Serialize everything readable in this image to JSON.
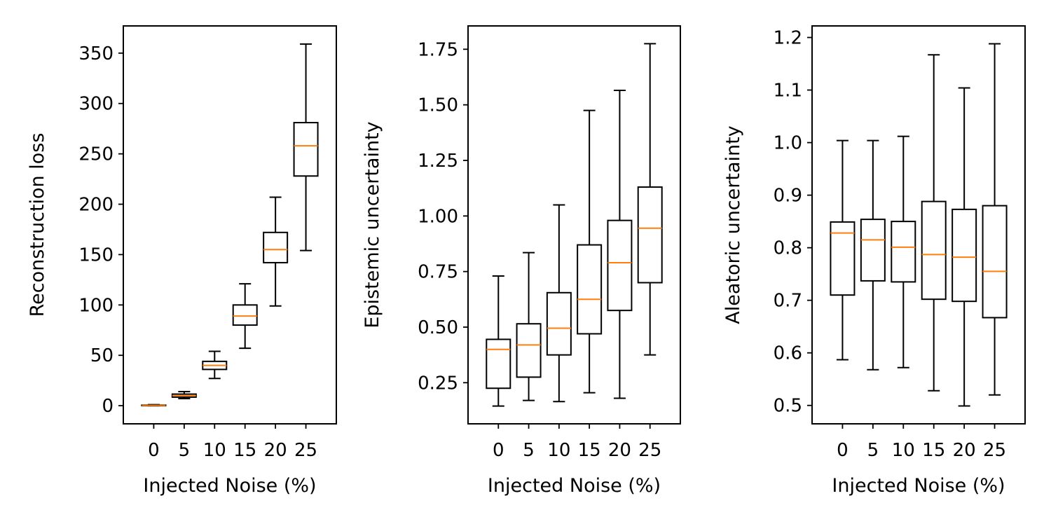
{
  "chart_data": [
    {
      "type": "box",
      "xlabel": "Injected Noise (%)",
      "ylabel": "Reconstruction loss",
      "categories": [
        "0",
        "5",
        "10",
        "15",
        "20",
        "25"
      ],
      "ylim": [
        -18,
        377
      ],
      "yticks": [
        0,
        50,
        100,
        150,
        200,
        250,
        300,
        350
      ],
      "ytick_labels": [
        "0",
        "50",
        "100",
        "150",
        "200",
        "250",
        "300",
        "350"
      ],
      "boxes": [
        {
          "min": 0,
          "q1": 0,
          "median": 0.3,
          "q3": 0.6,
          "max": 1
        },
        {
          "min": 7,
          "q1": 8.5,
          "median": 10,
          "q3": 11.5,
          "max": 14
        },
        {
          "min": 27,
          "q1": 36,
          "median": 40,
          "q3": 44,
          "max": 54
        },
        {
          "min": 57,
          "q1": 80,
          "median": 89,
          "q3": 100,
          "max": 121
        },
        {
          "min": 99,
          "q1": 142,
          "median": 155,
          "q3": 172,
          "max": 207
        },
        {
          "min": 154,
          "q1": 228,
          "median": 258,
          "q3": 281,
          "max": 359
        }
      ]
    },
    {
      "type": "box",
      "xlabel": "Injected Noise (%)",
      "ylabel": "Epistemic uncertainty",
      "categories": [
        "0",
        "5",
        "10",
        "15",
        "20",
        "25"
      ],
      "ylim": [
        0.065,
        1.855
      ],
      "yticks": [
        0.25,
        0.5,
        0.75,
        1.0,
        1.25,
        1.5,
        1.75
      ],
      "ytick_labels": [
        "0.25",
        "0.50",
        "0.75",
        "1.00",
        "1.25",
        "1.50",
        "1.75"
      ],
      "boxes": [
        {
          "min": 0.145,
          "q1": 0.225,
          "median": 0.4,
          "q3": 0.445,
          "max": 0.73
        },
        {
          "min": 0.17,
          "q1": 0.275,
          "median": 0.42,
          "q3": 0.515,
          "max": 0.835
        },
        {
          "min": 0.165,
          "q1": 0.375,
          "median": 0.495,
          "q3": 0.655,
          "max": 1.05
        },
        {
          "min": 0.205,
          "q1": 0.47,
          "median": 0.625,
          "q3": 0.87,
          "max": 1.475
        },
        {
          "min": 0.18,
          "q1": 0.575,
          "median": 0.79,
          "q3": 0.98,
          "max": 1.565
        },
        {
          "min": 0.375,
          "q1": 0.7,
          "median": 0.945,
          "q3": 1.13,
          "max": 1.775
        }
      ]
    },
    {
      "type": "box",
      "xlabel": "Injected Noise (%)",
      "ylabel": "Aleatoric uncertainty",
      "categories": [
        "0",
        "5",
        "10",
        "15",
        "20",
        "25"
      ],
      "ylim": [
        0.465,
        1.222
      ],
      "yticks": [
        0.5,
        0.6,
        0.7,
        0.8,
        0.9,
        1.0,
        1.1,
        1.2
      ],
      "ytick_labels": [
        "0.5",
        "0.6",
        "0.7",
        "0.8",
        "0.9",
        "1.0",
        "1.1",
        "1.2"
      ],
      "boxes": [
        {
          "min": 0.587,
          "q1": 0.71,
          "median": 0.828,
          "q3": 0.849,
          "max": 1.004
        },
        {
          "min": 0.568,
          "q1": 0.737,
          "median": 0.815,
          "q3": 0.854,
          "max": 1.004
        },
        {
          "min": 0.572,
          "q1": 0.735,
          "median": 0.801,
          "q3": 0.85,
          "max": 1.012
        },
        {
          "min": 0.528,
          "q1": 0.702,
          "median": 0.787,
          "q3": 0.888,
          "max": 1.167
        },
        {
          "min": 0.499,
          "q1": 0.698,
          "median": 0.782,
          "q3": 0.873,
          "max": 1.104
        },
        {
          "min": 0.52,
          "q1": 0.667,
          "median": 0.755,
          "q3": 0.88,
          "max": 1.188
        }
      ]
    }
  ],
  "colors": {
    "box": "#000000",
    "median": "#ff7f0e",
    "background": "#ffffff"
  }
}
